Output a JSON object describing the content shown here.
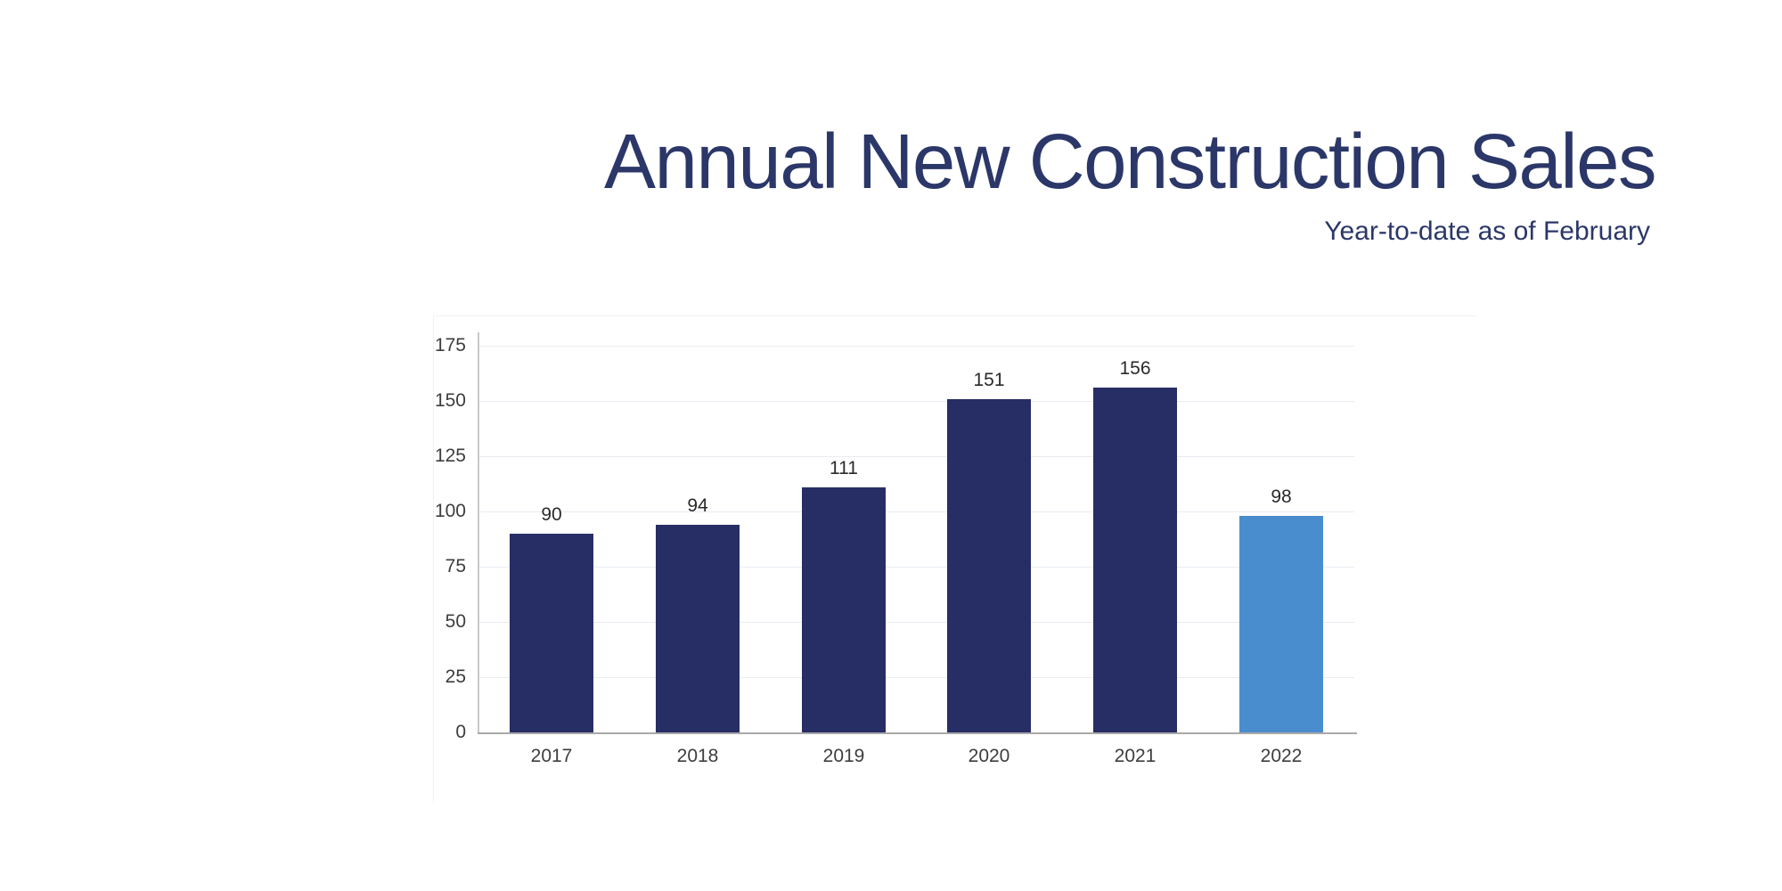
{
  "header": {
    "title": "Annual New Construction Sales",
    "subtitle": "Year-to-date as of February"
  },
  "chart_data": {
    "type": "bar",
    "title": "Annual New Construction Sales",
    "subtitle": "Year-to-date as of February",
    "categories": [
      "2017",
      "2018",
      "2019",
      "2020",
      "2021",
      "2022"
    ],
    "values": [
      90,
      94,
      111,
      151,
      156,
      98
    ],
    "value_labels": [
      "90",
      "94",
      "111",
      "151",
      "156",
      "98"
    ],
    "highlight_index": 5,
    "xlabel": "",
    "ylabel": "",
    "ylim": [
      0,
      175
    ],
    "yticks": [
      0,
      25,
      50,
      75,
      100,
      125,
      150,
      175
    ],
    "grid": "horizontal-only",
    "legend": "none",
    "colors": {
      "bar": "#272e65",
      "bar_highlight": "#4a8dce",
      "title_text": "#2b3768",
      "gridline": "#e8ecf3",
      "axis_x": "#a9a9a9",
      "axis_y": "#c9c9c9",
      "tick_label": "#3d3d3d",
      "value_label": "#2a2a2a"
    }
  }
}
